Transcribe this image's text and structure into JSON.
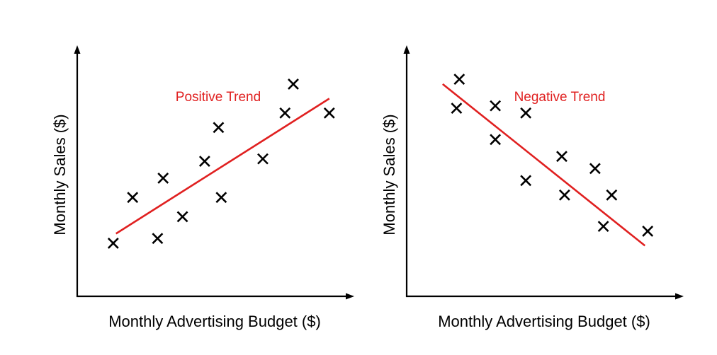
{
  "colors": {
    "axis": "#000000",
    "marker": "#000000",
    "trend": "#e02020",
    "background": "#ffffff"
  },
  "chart_data": [
    {
      "type": "scatter",
      "title": "",
      "xlabel": "Monthly Advertising Budget ($)",
      "ylabel": "Monthly Sales ($)",
      "annotation": "Positive Trend",
      "ticks": "none",
      "grid": false,
      "marker": "x",
      "xlim": [
        0,
        10
      ],
      "ylim": [
        0,
        10
      ],
      "series": [
        {
          "x": [
            1.3,
            2.0,
            2.9,
            3.1,
            3.8,
            4.6,
            5.1,
            5.2,
            6.7,
            7.5,
            7.8,
            9.1
          ],
          "y": [
            2.2,
            4.1,
            2.4,
            4.9,
            3.3,
            5.6,
            7.0,
            4.1,
            5.7,
            7.6,
            8.8,
            7.6
          ]
        }
      ],
      "trend_line": {
        "x": [
          1.4,
          9.1
        ],
        "y": [
          2.6,
          8.2
        ]
      }
    },
    {
      "type": "scatter",
      "title": "",
      "xlabel": "Monthly Advertising Budget ($)",
      "ylabel": "Monthly Sales ($)",
      "annotation": "Negative Trend",
      "ticks": "none",
      "grid": false,
      "marker": "x",
      "xlim": [
        0,
        10
      ],
      "ylim": [
        0,
        10
      ],
      "series": [
        {
          "x": [
            1.9,
            1.8,
            3.2,
            3.2,
            4.3,
            4.3,
            5.6,
            5.7,
            6.8,
            7.1,
            7.4,
            8.7
          ],
          "y": [
            9.0,
            7.8,
            7.9,
            6.5,
            7.6,
            4.8,
            5.8,
            4.2,
            5.3,
            2.9,
            4.2,
            2.7
          ]
        }
      ],
      "trend_line": {
        "x": [
          1.3,
          8.6
        ],
        "y": [
          8.8,
          2.1
        ]
      }
    }
  ]
}
